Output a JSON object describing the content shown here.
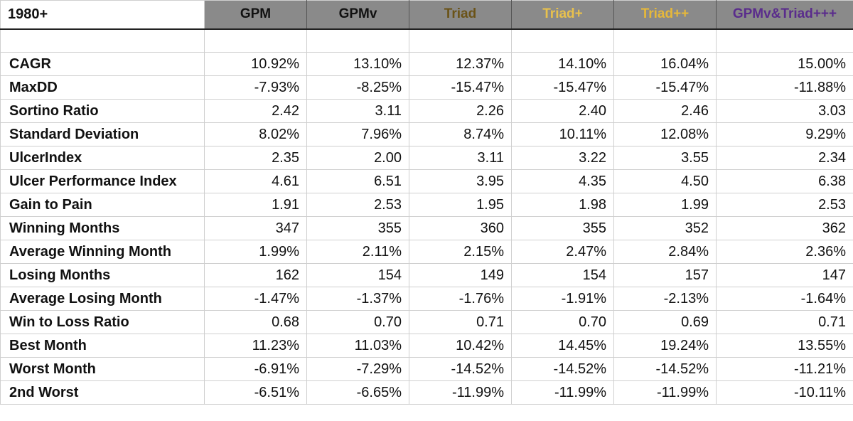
{
  "corner_label": "1980+",
  "columns": [
    {
      "label": "GPM",
      "color": "#111111"
    },
    {
      "label": "GPMv",
      "color": "#111111"
    },
    {
      "label": "Triad",
      "color": "#6b5318"
    },
    {
      "label": "Triad+",
      "color": "#e8c14d"
    },
    {
      "label": "Triad++",
      "color": "#e6b83a"
    },
    {
      "label": "GPMv&Triad+++",
      "color": "#5a2c8c"
    }
  ],
  "rows": [
    {
      "metric": "CAGR",
      "values": [
        "10.92%",
        "13.10%",
        "12.37%",
        "14.10%",
        "16.04%",
        "15.00%"
      ]
    },
    {
      "metric": "MaxDD",
      "values": [
        "-7.93%",
        "-8.25%",
        "-15.47%",
        "-15.47%",
        "-15.47%",
        "-11.88%"
      ]
    },
    {
      "metric": "Sortino Ratio",
      "values": [
        "2.42",
        "3.11",
        "2.26",
        "2.40",
        "2.46",
        "3.03"
      ]
    },
    {
      "metric": "Standard Deviation",
      "values": [
        "8.02%",
        "7.96%",
        "8.74%",
        "10.11%",
        "12.08%",
        "9.29%"
      ]
    },
    {
      "metric": "UlcerIndex",
      "values": [
        "2.35",
        "2.00",
        "3.11",
        "3.22",
        "3.55",
        "2.34"
      ]
    },
    {
      "metric": "Ulcer Performance Index",
      "values": [
        "4.61",
        "6.51",
        "3.95",
        "4.35",
        "4.50",
        "6.38"
      ]
    },
    {
      "metric": "Gain to Pain",
      "values": [
        "1.91",
        "2.53",
        "1.95",
        "1.98",
        "1.99",
        "2.53"
      ]
    },
    {
      "metric": "Winning Months",
      "values": [
        "347",
        "355",
        "360",
        "355",
        "352",
        "362"
      ]
    },
    {
      "metric": "Average Winning Month",
      "values": [
        "1.99%",
        "2.11%",
        "2.15%",
        "2.47%",
        "2.84%",
        "2.36%"
      ]
    },
    {
      "metric": "Losing Months",
      "values": [
        "162",
        "154",
        "149",
        "154",
        "157",
        "147"
      ]
    },
    {
      "metric": "Average Losing Month",
      "values": [
        "-1.47%",
        "-1.37%",
        "-1.76%",
        "-1.91%",
        "-2.13%",
        "-1.64%"
      ]
    },
    {
      "metric": "Win to Loss Ratio",
      "values": [
        "0.68",
        "0.70",
        "0.71",
        "0.70",
        "0.69",
        "0.71"
      ]
    },
    {
      "metric": "Best Month",
      "values": [
        "11.23%",
        "11.03%",
        "10.42%",
        "14.45%",
        "19.24%",
        "13.55%"
      ]
    },
    {
      "metric": "Worst Month",
      "values": [
        "-6.91%",
        "-7.29%",
        "-14.52%",
        "-14.52%",
        "-14.52%",
        "-11.21%"
      ]
    },
    {
      "metric": "2nd Worst",
      "values": [
        "-6.51%",
        "-6.65%",
        "-11.99%",
        "-11.99%",
        "-11.99%",
        "-10.11%"
      ]
    }
  ]
}
